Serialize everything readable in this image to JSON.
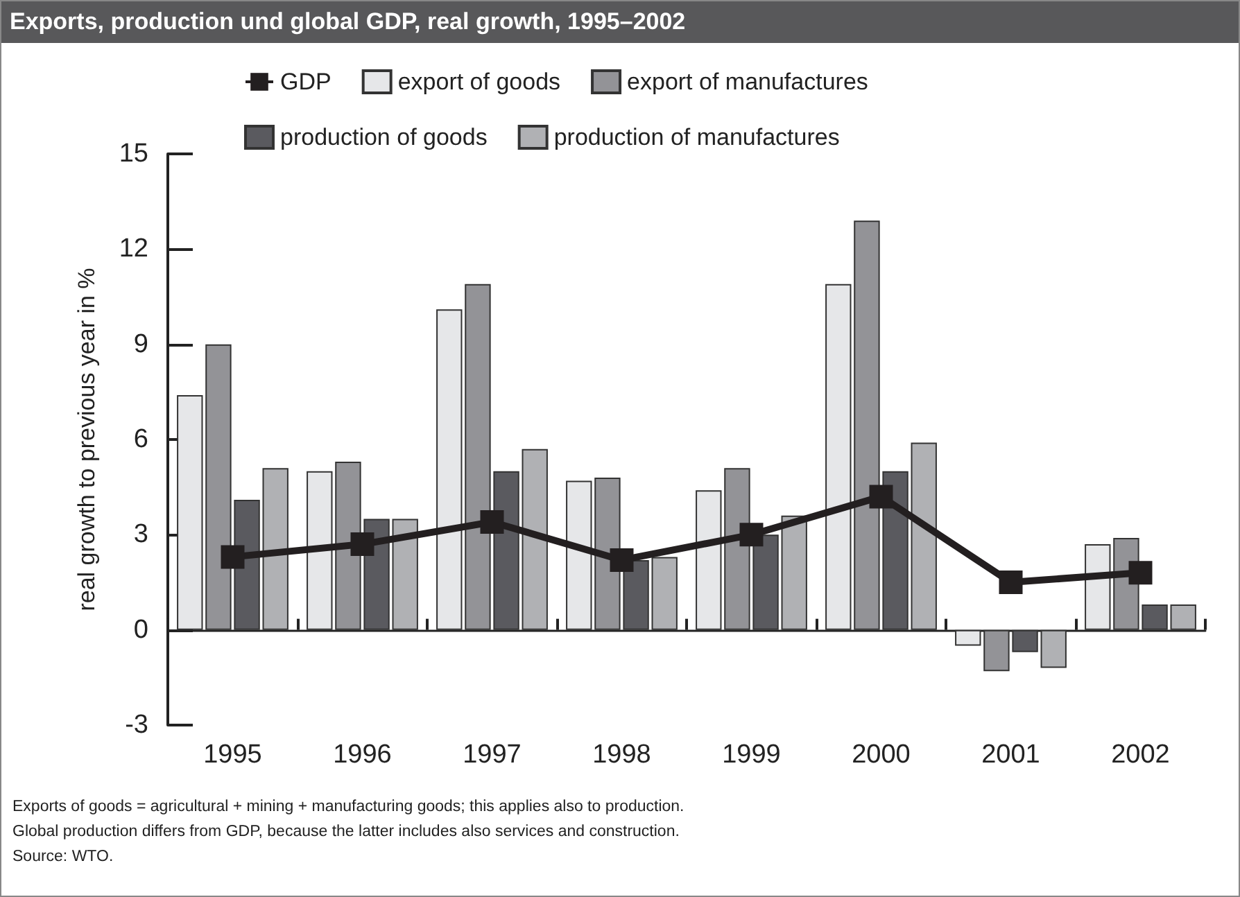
{
  "chart_data": {
    "type": "bar",
    "title": "Exports, production und global GDP, real growth, 1995–2002",
    "ylabel": "real growth to previous year in %",
    "categories": [
      "1995",
      "1996",
      "1997",
      "1998",
      "1999",
      "2000",
      "2001",
      "2002"
    ],
    "series": [
      {
        "name": "GDP",
        "type": "line",
        "color": "#231f20",
        "marker": "square",
        "values": [
          2.3,
          2.7,
          3.4,
          2.2,
          3.0,
          4.2,
          1.5,
          1.8
        ]
      },
      {
        "name": "export of goods",
        "color": "#e6e7e9",
        "values": [
          7.4,
          5.0,
          10.1,
          4.7,
          4.4,
          10.9,
          -0.5,
          2.7
        ]
      },
      {
        "name": "export of manufactures",
        "color": "#939397",
        "values": [
          9.0,
          5.3,
          10.9,
          4.8,
          5.1,
          12.9,
          -1.3,
          2.9
        ]
      },
      {
        "name": "production of goods",
        "color": "#5a5a5f",
        "values": [
          4.1,
          3.5,
          5.0,
          2.2,
          3.0,
          5.0,
          -0.7,
          0.8
        ]
      },
      {
        "name": "production of manufactures",
        "color": "#b0b1b4",
        "values": [
          5.1,
          3.5,
          5.7,
          2.3,
          3.6,
          5.9,
          -1.2,
          0.8
        ]
      }
    ],
    "ylim": [
      -3,
      15
    ],
    "yticks": [
      -3,
      0,
      3,
      6,
      9,
      12,
      15
    ],
    "legend": "top",
    "annotations": [
      "Exports of goods = agricultural +  mining + manufacturing goods; this applies also to production.",
      "Global production differs from GDP, because the latter includes also services and construction.",
      "Source: WTO."
    ]
  }
}
